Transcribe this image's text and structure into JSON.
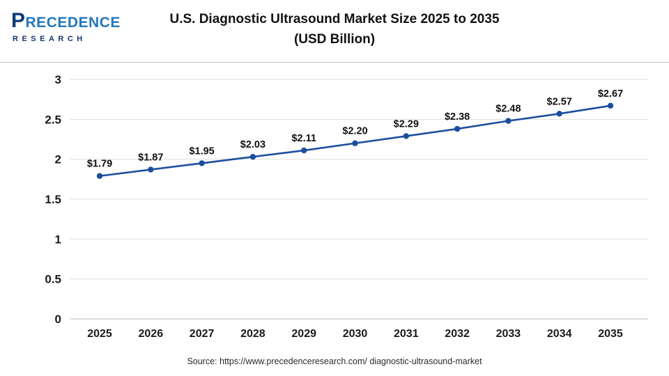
{
  "logo": {
    "line1": "PRECEDENCE",
    "line2": "RESEARCH"
  },
  "header": {
    "title_line1": "U.S. Diagnostic Ultrasound Market Size 2025 to 2035",
    "title_line2": "(USD Billion)"
  },
  "source": "Source: https://www.precedenceresearch.com/ diagnostic-ultrasound-market",
  "chart_data": {
    "type": "line",
    "title": "U.S. Diagnostic Ultrasound Market Size 2025 to 2035 (USD Billion)",
    "categories": [
      "2025",
      "2026",
      "2027",
      "2028",
      "2029",
      "2030",
      "2031",
      "2032",
      "2033",
      "2034",
      "2035"
    ],
    "values": [
      1.79,
      1.87,
      1.95,
      2.03,
      2.11,
      2.2,
      2.29,
      2.38,
      2.48,
      2.57,
      2.67
    ],
    "labels": [
      "$1.79",
      "$1.87",
      "$1.95",
      "$2.03",
      "$2.11",
      "$2.20",
      "$2.29",
      "$2.38",
      "$2.48",
      "$2.57",
      "$2.67"
    ],
    "xlabel": "",
    "ylabel": "",
    "ylim": [
      0,
      3
    ],
    "yticks": [
      0,
      0.5,
      1,
      1.5,
      2,
      2.5,
      3
    ],
    "ytick_labels": [
      "0",
      "0.5",
      "1",
      "1.5",
      "2",
      "2.5",
      "3"
    ],
    "grid": true,
    "legend": "none",
    "line_color": "#1b4f9e",
    "marker": "circle"
  }
}
